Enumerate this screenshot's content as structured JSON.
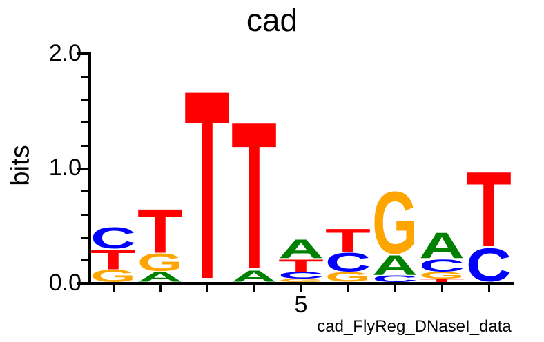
{
  "chart_data": {
    "type": "bar",
    "subtype": "sequence_logo",
    "title": "cad",
    "ylabel": "bits",
    "caption": "cad_FlyReg_DNaseI_data",
    "ylim": [
      0,
      2
    ],
    "yticks": [
      "0.0",
      "1.0",
      "2.0"
    ],
    "ytick_values": [
      0,
      1,
      2
    ],
    "y_minor_step": 0.2,
    "xtick_label": "5",
    "xtick_label_position": 5,
    "num_positions": 9,
    "grid": "off",
    "base_colors": {
      "A": "#008000",
      "C": "#0000FF",
      "G": "#FFA500",
      "T": "#FF0000"
    },
    "positions": [
      {
        "position": 1,
        "stack": [
          {
            "base": "G",
            "bits": 0.11
          },
          {
            "base": "T",
            "bits": 0.18
          },
          {
            "base": "C",
            "bits": 0.19
          }
        ]
      },
      {
        "position": 2,
        "stack": [
          {
            "base": "A",
            "bits": 0.09
          },
          {
            "base": "G",
            "bits": 0.16
          },
          {
            "base": "T",
            "bits": 0.4
          }
        ]
      },
      {
        "position": 3,
        "stack": [
          {
            "base": "T",
            "bits": 1.71
          }
        ]
      },
      {
        "position": 4,
        "stack": [
          {
            "base": "A",
            "bits": 0.1
          },
          {
            "base": "T",
            "bits": 1.33
          }
        ]
      },
      {
        "position": 5,
        "stack": [
          {
            "base": "G",
            "bits": 0.03
          },
          {
            "base": "C",
            "bits": 0.06
          },
          {
            "base": "T",
            "bits": 0.11
          },
          {
            "base": "A",
            "bits": 0.17
          }
        ]
      },
      {
        "position": 6,
        "stack": [
          {
            "base": "G",
            "bits": 0.09
          },
          {
            "base": "C",
            "bits": 0.17
          },
          {
            "base": "T",
            "bits": 0.21
          }
        ]
      },
      {
        "position": 7,
        "stack": [
          {
            "base": "C",
            "bits": 0.06
          },
          {
            "base": "A",
            "bits": 0.18
          },
          {
            "base": "G",
            "bits": 0.56
          }
        ]
      },
      {
        "position": 8,
        "stack": [
          {
            "base": "T",
            "bits": 0.03
          },
          {
            "base": "G",
            "bits": 0.06
          },
          {
            "base": "C",
            "bits": 0.11
          },
          {
            "base": "A",
            "bits": 0.23
          }
        ]
      },
      {
        "position": 9,
        "stack": [
          {
            "base": "C",
            "bits": 0.3
          },
          {
            "base": "T",
            "bits": 0.68
          }
        ]
      }
    ]
  }
}
